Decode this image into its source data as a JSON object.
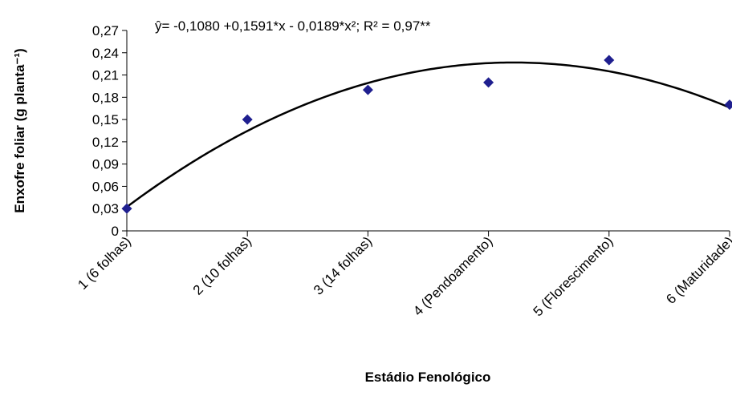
{
  "chart_data": {
    "type": "scatter",
    "title": "",
    "equation_text": "ŷ=  -0,1080 +0,1591*x  - 0,0189*x²;  R² = 0,97**",
    "xlabel": "Estádio Fenológico",
    "ylabel": "Enxofre foliar (g planta⁻¹)",
    "categories": [
      "1 (6 folhas)",
      "2 (10 folhas)",
      "3 (14 folhas)",
      "4 (Pendoamento)",
      "5 (Florescimento)",
      "6 (Maturidade)"
    ],
    "x": [
      1,
      2,
      3,
      4,
      5,
      6
    ],
    "ylim": [
      0,
      0.27
    ],
    "y_ticks": [
      "0",
      "0,03",
      "0,06",
      "0,09",
      "0,12",
      "0,15",
      "0,18",
      "0,21",
      "0,24",
      "0,27"
    ],
    "series": [
      {
        "values": [
          0.03,
          0.15,
          0.19,
          0.2,
          0.23,
          0.17
        ],
        "color": "#1F1F8F",
        "marker": "diamond"
      }
    ],
    "trendline": {
      "type": "polynomial",
      "degree": 2,
      "coefficients": [
        -0.108,
        0.1591,
        -0.0189
      ],
      "color": "#000000"
    },
    "grid": false,
    "legend": "none"
  }
}
